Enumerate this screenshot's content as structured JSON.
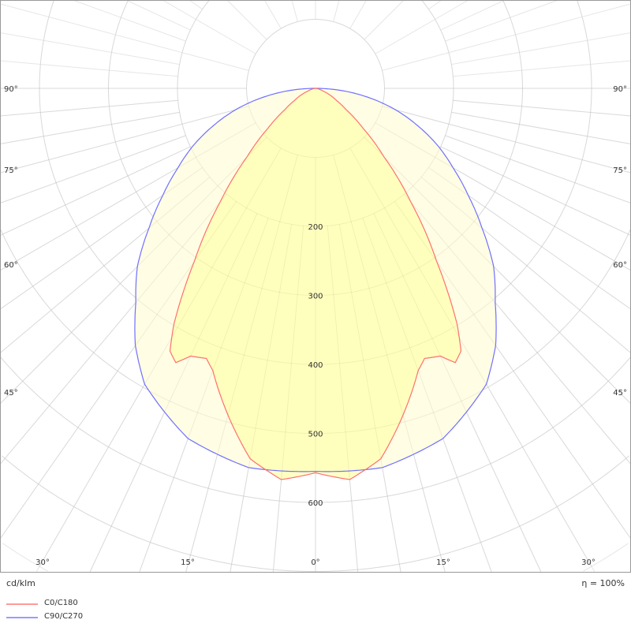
{
  "chart_data": {
    "type": "polar",
    "unit_label": "cd/klm",
    "efficiency_label": "η = 100%",
    "radial_ticks": [
      100,
      200,
      300,
      400,
      500,
      600,
      700
    ],
    "radial_tick_labels": [
      "200",
      "300",
      "400",
      "500",
      "600"
    ],
    "angle_labels_bottom": [
      "30°",
      "15°",
      "0°",
      "15°",
      "30°"
    ],
    "angle_labels_sides": [
      "90°",
      "75°",
      "60°",
      "45°"
    ],
    "grid": true,
    "legend_position": "bottom-left",
    "series": [
      {
        "name": "C0/C180",
        "color": "#ff7070",
        "fill": "#ffffb0",
        "angles": [
          0,
          5,
          10,
          15,
          20,
          22,
          25,
          27,
          29,
          31,
          35,
          40,
          45,
          50,
          55,
          60,
          70,
          80,
          90
        ],
        "values": [
          557,
          569,
          545,
          490,
          435,
          422,
          428,
          446,
          435,
          398,
          306,
          215,
          140,
          90,
          55,
          35,
          12,
          3,
          0
        ]
      },
      {
        "name": "C90/C270",
        "color": "#7070ff",
        "fill": "#fffde0",
        "angles": [
          0,
          10,
          20,
          30,
          35,
          40,
          45,
          50,
          55,
          60,
          65,
          70,
          75,
          80,
          85,
          90
        ],
        "values": [
          555,
          558,
          540,
          495,
          455,
          405,
          365,
          315,
          270,
          230,
          195,
          157,
          120,
          80,
          40,
          0
        ]
      }
    ]
  }
}
